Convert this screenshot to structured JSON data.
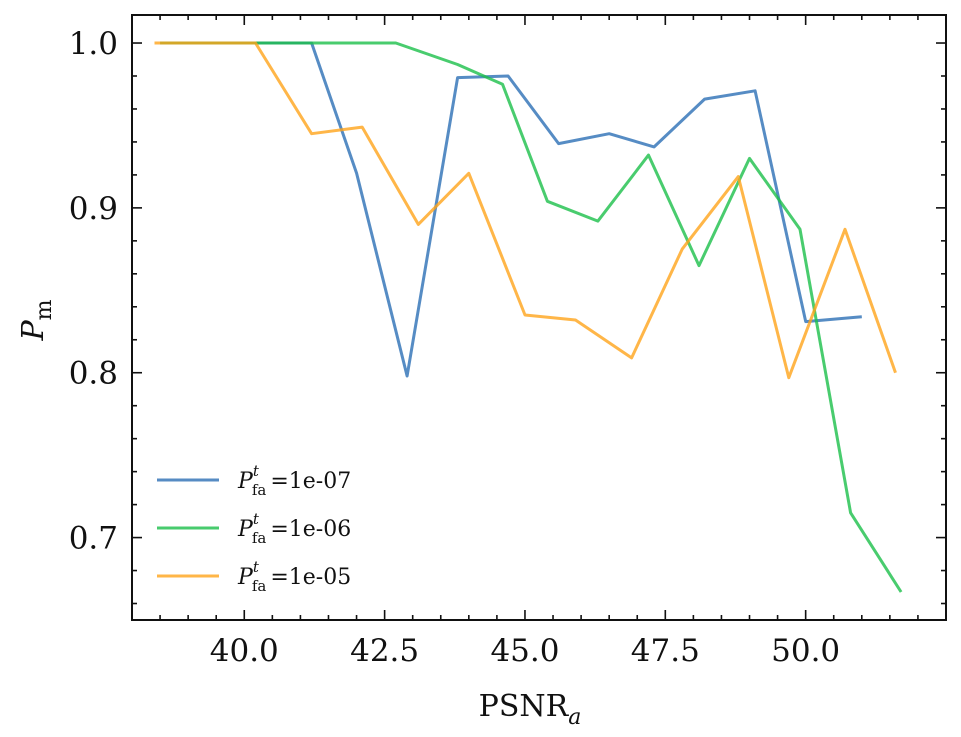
{
  "chart_data": {
    "type": "line",
    "title": "",
    "xlabel_main": "PSNR",
    "xlabel_sub": "a",
    "ylabel_main": "P",
    "ylabel_sub": "m",
    "xlim": [
      38.0,
      52.5
    ],
    "ylim": [
      0.65,
      1.017
    ],
    "x_ticks": [
      40.0,
      42.5,
      45.0,
      47.5,
      50.0
    ],
    "x_tick_labels": [
      "40.0",
      "42.5",
      "45.0",
      "47.5",
      "50.0"
    ],
    "y_ticks": [
      0.7,
      0.8,
      0.9,
      1.0
    ],
    "y_tick_labels": [
      "0.7",
      "0.8",
      "0.9",
      "1.0"
    ],
    "grid": false,
    "legend_placement": "lower-left",
    "series": [
      {
        "name": "1e-07",
        "legend_prefix": "P",
        "legend_sup": "t",
        "legend_sub": "fa",
        "legend_eq": "=1e-07",
        "color": "#2c6fb5",
        "x": [
          38.5,
          39.3,
          40.2,
          41.2,
          42.0,
          42.9,
          43.8,
          44.7,
          45.6,
          46.5,
          47.3,
          48.2,
          49.1,
          50.0,
          51.0
        ],
        "y": [
          1.0,
          1.0,
          1.0,
          1.0,
          0.921,
          0.798,
          0.979,
          0.98,
          0.939,
          0.945,
          0.937,
          0.966,
          0.971,
          0.831,
          0.834
        ]
      },
      {
        "name": "1e-06",
        "legend_prefix": "P",
        "legend_sup": "t",
        "legend_sub": "fa",
        "legend_eq": "=1e-06",
        "color": "#1bbf4a",
        "x": [
          38.5,
          40.2,
          41.0,
          42.7,
          43.8,
          44.6,
          45.4,
          46.3,
          47.2,
          48.1,
          49.0,
          49.9,
          50.8,
          51.7
        ],
        "y": [
          1.0,
          1.0,
          1.0,
          1.0,
          0.987,
          0.975,
          0.904,
          0.892,
          0.932,
          0.865,
          0.93,
          0.887,
          0.715,
          0.667
        ]
      },
      {
        "name": "1e-05",
        "legend_prefix": "P",
        "legend_sup": "t",
        "legend_sub": "fa",
        "legend_eq": "=1e-05",
        "color": "#ffa41a",
        "x": [
          38.4,
          40.2,
          41.2,
          42.1,
          43.1,
          44.0,
          45.0,
          45.9,
          46.9,
          47.8,
          48.8,
          49.7,
          50.7,
          51.6
        ],
        "y": [
          1.0,
          1.0,
          0.945,
          0.949,
          0.89,
          0.921,
          0.835,
          0.832,
          0.809,
          0.875,
          0.919,
          0.797,
          0.887,
          0.8
        ]
      }
    ]
  }
}
